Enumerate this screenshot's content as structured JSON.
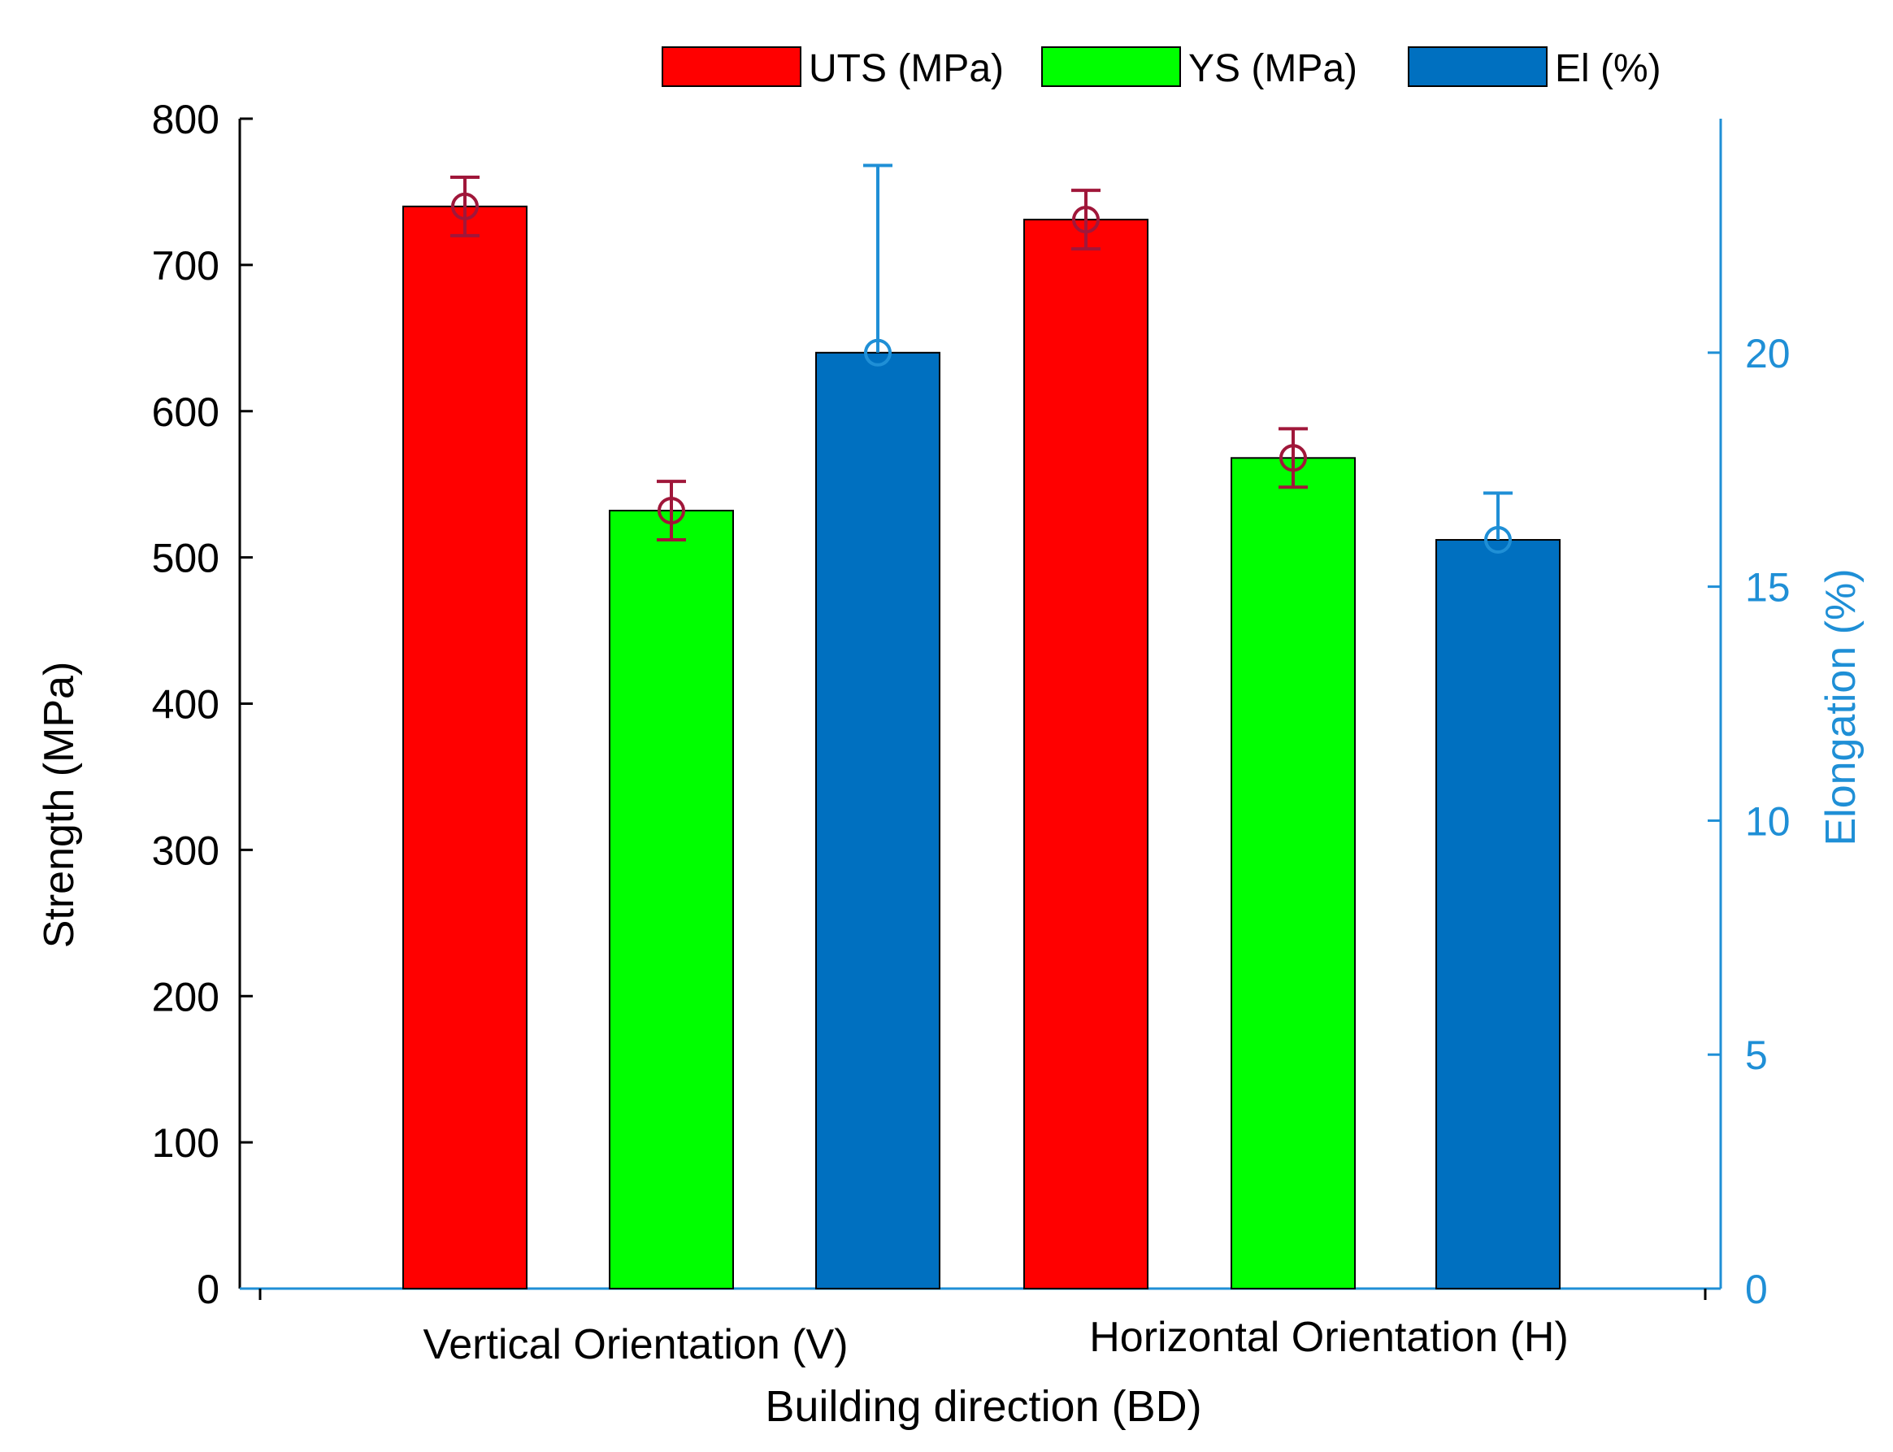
{
  "chart_data": {
    "type": "bar",
    "xlabel": "Building direction (BD)",
    "ylabel": "Strength (MPa)",
    "y2label": "Elongation (%)",
    "ylim": [
      0,
      800
    ],
    "y2lim": [
      0,
      25
    ],
    "yticks": [
      "0",
      "100",
      "200",
      "300",
      "400",
      "500",
      "600",
      "700",
      "800"
    ],
    "y2ticks": [
      "0",
      "5",
      "10",
      "15",
      "20"
    ],
    "groups": [
      {
        "label": "Vertical Orientation (V)",
        "bars": [
          {
            "series": "UTS (MPa)",
            "axis": "left",
            "value": 740,
            "err": 20
          },
          {
            "series": "YS (MPa)",
            "axis": "left",
            "value": 532,
            "err": 20
          },
          {
            "series": "El (%)",
            "axis": "right",
            "value": 20,
            "err_plus": 4,
            "err_minus": 0
          }
        ]
      },
      {
        "label": "Horizontal Orientation (H)",
        "bars": [
          {
            "series": "UTS (MPa)",
            "axis": "left",
            "value": 731,
            "err": 20
          },
          {
            "series": "YS (MPa)",
            "axis": "left",
            "value": 568,
            "err": 20
          },
          {
            "series": "El (%)",
            "axis": "right",
            "value": 16,
            "err_plus": 1,
            "err_minus": 0
          }
        ]
      }
    ],
    "legend": [
      {
        "label": "UTS (MPa)",
        "color": "#ff0000"
      },
      {
        "label": "YS (MPa)",
        "color": "#00ff00"
      },
      {
        "label": "El (%)",
        "color": "#0070c0"
      }
    ],
    "legend_position": "top",
    "colors": {
      "uts": "#ff0000",
      "ys": "#00ff00",
      "el": "#0070c0",
      "error_left": "#a0173a",
      "error_right": "#1f8fd6",
      "right_axis": "#1f8fd6"
    },
    "grid": false
  }
}
